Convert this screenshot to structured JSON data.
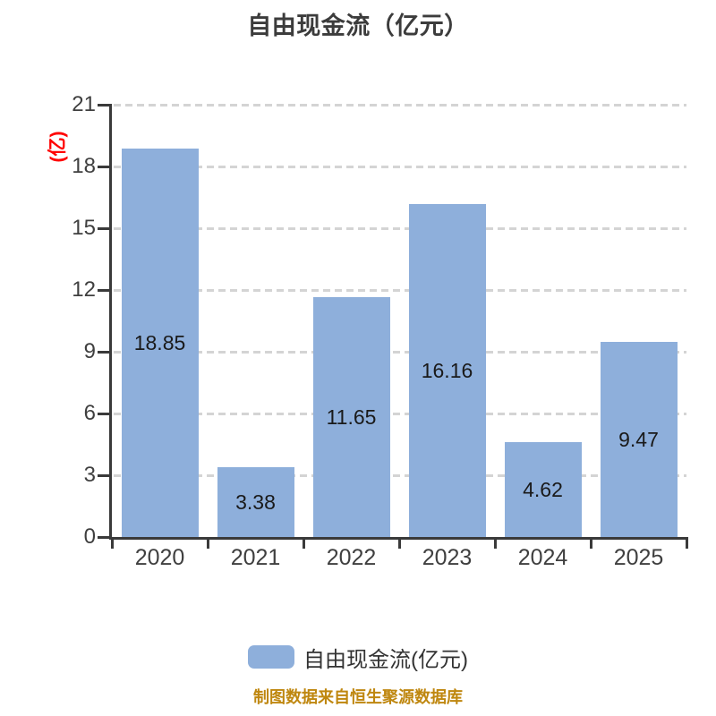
{
  "title": "自由现金流（亿元）",
  "y_axis_name": "(亿)",
  "legend": {
    "label": "自由现金流(亿元)"
  },
  "footer_note": "制图数据来自恒生聚源数据库",
  "colors": {
    "bar": "#8EAFDB",
    "axis": "#3A3A3A",
    "grid": "#D4D4D4",
    "title": "#3C3C3C",
    "tick_label": "#3F3F3F",
    "value_label": "#1A1A1A",
    "axis_name": "#FF0000",
    "legend_text": "#333333",
    "footer": "#BF870F"
  },
  "chart_data": {
    "type": "bar",
    "title": "自由现金流（亿元）",
    "categories": [
      "2020",
      "2021",
      "2022",
      "2023",
      "2024",
      "2025"
    ],
    "series": [
      {
        "name": "自由现金流(亿元)",
        "values": [
          18.85,
          3.38,
          11.65,
          16.16,
          4.62,
          9.47
        ]
      }
    ],
    "xlabel": "",
    "ylabel": "(亿)",
    "ylim": [
      0,
      21
    ],
    "yticks": [
      0,
      3,
      6,
      9,
      12,
      15,
      18,
      21
    ],
    "grid": "horizontal-dashed",
    "legend_position": "bottom",
    "value_labels": "inside-center",
    "source_note": "制图数据来自恒生聚源数据库"
  }
}
